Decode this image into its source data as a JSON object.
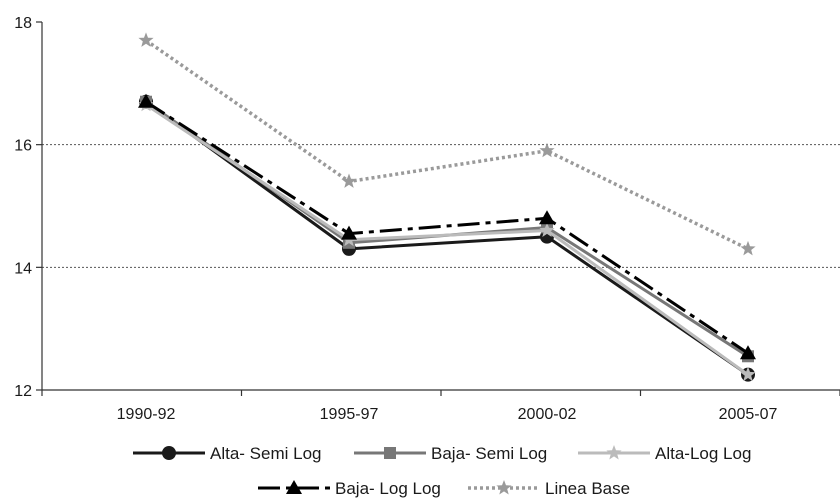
{
  "chart_data": {
    "type": "line",
    "categories": [
      "1990-92",
      "1995-97",
      "2000-02",
      "2005-07"
    ],
    "ylim": [
      12,
      18
    ],
    "yticks": [
      12,
      14,
      16,
      18
    ],
    "grid": "horizontal dotted at 14 and 16",
    "legend_position": "bottom",
    "series": [
      {
        "name": "Alta- Semi Log",
        "values": [
          16.7,
          14.3,
          14.5,
          12.25
        ],
        "color": "#1a1a1a",
        "dash": "solid",
        "marker": "circle"
      },
      {
        "name": "Baja- Semi Log",
        "values": [
          16.7,
          14.4,
          14.65,
          12.55
        ],
        "color": "#777777",
        "dash": "solid",
        "marker": "square"
      },
      {
        "name": "Alta-Log Log",
        "values": [
          16.65,
          14.45,
          14.6,
          12.25
        ],
        "color": "#bbbbbb",
        "dash": "solid",
        "marker": "star"
      },
      {
        "name": "Baja- Log Log",
        "values": [
          16.7,
          14.55,
          14.8,
          12.6
        ],
        "color": "#000000",
        "dash": "dashdot",
        "marker": "triangle"
      },
      {
        "name": "Linea Base",
        "values": [
          17.7,
          15.4,
          15.9,
          14.3
        ],
        "color": "#9a9a9a",
        "dash": "dotted",
        "marker": "star"
      }
    ]
  }
}
